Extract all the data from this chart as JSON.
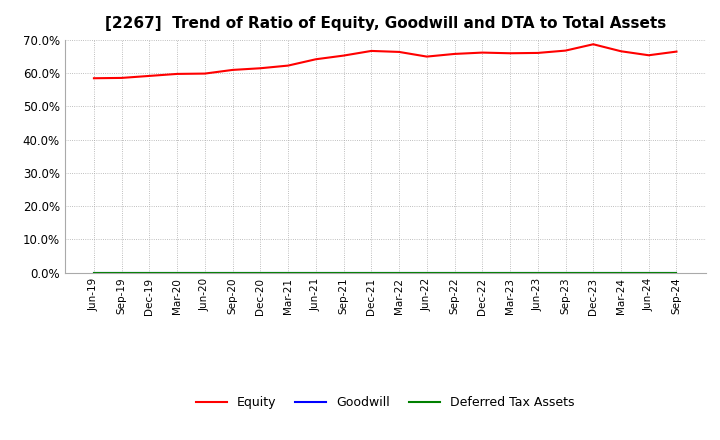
{
  "title": "[2267]  Trend of Ratio of Equity, Goodwill and DTA to Total Assets",
  "x_labels": [
    "Jun-19",
    "Sep-19",
    "Dec-19",
    "Mar-20",
    "Jun-20",
    "Sep-20",
    "Dec-20",
    "Mar-21",
    "Jun-21",
    "Sep-21",
    "Dec-21",
    "Mar-22",
    "Jun-22",
    "Sep-22",
    "Dec-22",
    "Mar-23",
    "Jun-23",
    "Sep-23",
    "Dec-23",
    "Mar-24",
    "Jun-24",
    "Sep-24"
  ],
  "equity": [
    0.584,
    0.585,
    0.591,
    0.597,
    0.598,
    0.609,
    0.614,
    0.622,
    0.641,
    0.652,
    0.666,
    0.663,
    0.649,
    0.657,
    0.661,
    0.659,
    0.66,
    0.667,
    0.686,
    0.665,
    0.653,
    0.664
  ],
  "goodwill": [
    0.0,
    0.0,
    0.0,
    0.0,
    0.0,
    0.0,
    0.0,
    0.0,
    0.0,
    0.0,
    0.0,
    0.0,
    0.0,
    0.0,
    0.0,
    0.0,
    0.0,
    0.0,
    0.0,
    0.0,
    0.0,
    0.0
  ],
  "dta": [
    0.0,
    0.0,
    0.0,
    0.0,
    0.0,
    0.0,
    0.0,
    0.0,
    0.0,
    0.0,
    0.0,
    0.0,
    0.0,
    0.0,
    0.0,
    0.0,
    0.0,
    0.0,
    0.0,
    0.0,
    0.0,
    0.0
  ],
  "equity_color": "#FF0000",
  "goodwill_color": "#0000FF",
  "dta_color": "#008000",
  "ylim": [
    0.0,
    0.7
  ],
  "yticks": [
    0.0,
    0.1,
    0.2,
    0.3,
    0.4,
    0.5,
    0.6,
    0.7
  ],
  "background_color": "#FFFFFF",
  "plot_bg_color": "#FFFFFF",
  "grid_color": "#AAAAAA",
  "title_fontsize": 11,
  "legend_labels": [
    "Equity",
    "Goodwill",
    "Deferred Tax Assets"
  ],
  "line_width": 1.5,
  "tick_fontsize": 7.5,
  "ytick_fontsize": 8.5
}
